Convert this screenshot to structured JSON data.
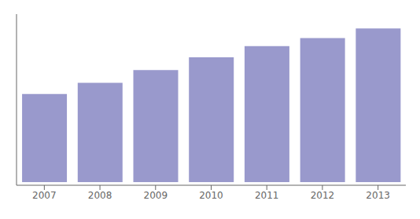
{
  "chart_data": {
    "type": "bar",
    "categories": [
      "2007",
      "2008",
      "2009",
      "2010",
      "2011",
      "2012",
      "2013"
    ],
    "values": [
      0.55,
      0.62,
      0.7,
      0.78,
      0.85,
      0.9,
      0.96
    ],
    "color": "#9999CC",
    "ylim": [
      -0.02,
      1.05
    ],
    "grid": false,
    "tick_labels": "x"
  }
}
